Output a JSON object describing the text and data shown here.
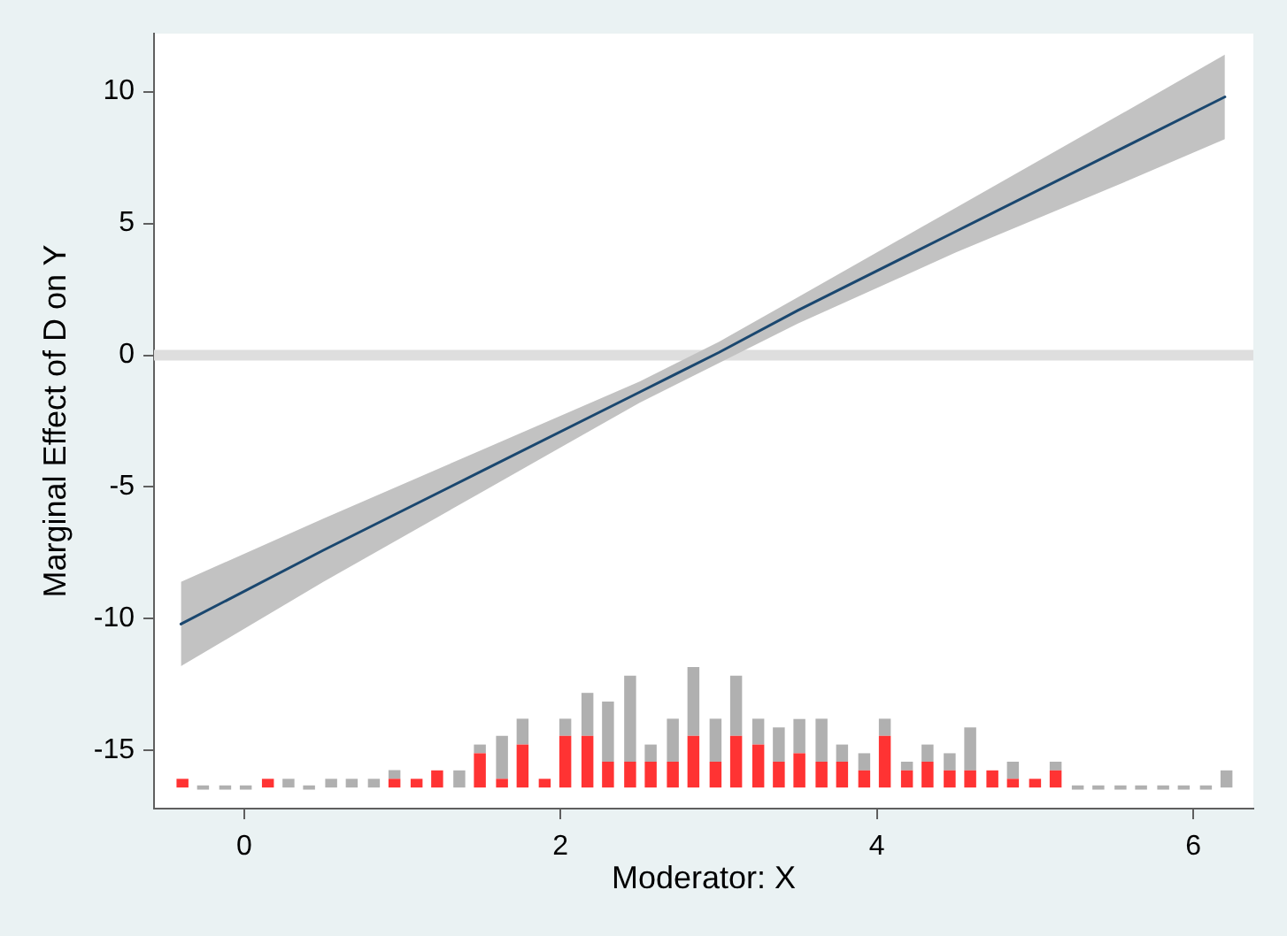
{
  "chart_data": {
    "type": "line",
    "xlabel": "Moderator: X",
    "ylabel": "Marginal Effect of D on Y",
    "xlim": [
      -0.57,
      6.38
    ],
    "ylim": [
      -17.2,
      12.2
    ],
    "xticks": [
      0,
      2,
      4,
      6
    ],
    "yticks": [
      -15,
      -10,
      -5,
      0,
      5,
      10
    ],
    "grid": false,
    "legend": false,
    "marker": "none",
    "ref_lines": [
      {
        "axis": "y",
        "value": 0,
        "color": "#dedede"
      }
    ],
    "series": [
      {
        "color": "#1a476f",
        "x": [
          -0.4,
          0.5,
          1.5,
          2.5,
          3,
          3.5,
          4.5,
          5.5,
          6.2
        ],
        "values": [
          -10.2,
          -7.4,
          -4.4,
          -1.4,
          0.1,
          1.7,
          4.7,
          7.7,
          9.8
        ],
        "lower": [
          -11.8,
          -8.6,
          -5.2,
          -1.8,
          -0.3,
          1.2,
          3.9,
          6.4,
          8.2
        ],
        "upper": [
          -8.6,
          -6.2,
          -3.6,
          -1.0,
          0.5,
          2.2,
          5.6,
          9.0,
          11.4
        ]
      },
      {
        "type": "bar",
        "color": "#ff3333",
        "x": [
          -0.39,
          -0.26,
          -0.12,
          0.01,
          0.15,
          0.28,
          0.41,
          0.55,
          0.68,
          0.82,
          0.95,
          1.09,
          1.22,
          1.36,
          1.49,
          1.63,
          1.76,
          1.9,
          2.03,
          2.17,
          2.3,
          2.44,
          2.57,
          2.71,
          2.84,
          2.98,
          3.11,
          3.25,
          3.38,
          3.51,
          3.65,
          3.78,
          3.92,
          4.05,
          4.19,
          4.32,
          4.46,
          4.59,
          4.73,
          4.86,
          5,
          5.13
        ],
        "base": [
          -16.4,
          null,
          null,
          null,
          -16.4,
          null,
          null,
          null,
          null,
          null,
          -16.4,
          -16.4,
          -16.4,
          null,
          -16.4,
          -16.4,
          -16.4,
          -16.4,
          -16.4,
          -16.4,
          -16.4,
          -16.4,
          -16.4,
          -16.4,
          -16.4,
          -16.4,
          -16.4,
          -16.4,
          -16.4,
          -16.4,
          -16.4,
          -16.4,
          -16.4,
          -16.4,
          -16.4,
          -16.4,
          -16.4,
          -16.4,
          -16.4,
          -16.4,
          -16.4,
          -16.4
        ],
        "values": [
          0.33,
          null,
          null,
          null,
          0.33,
          null,
          null,
          null,
          null,
          null,
          0.33,
          0.33,
          0.65,
          null,
          1.3,
          0.33,
          1.63,
          0.33,
          1.96,
          1.96,
          0.98,
          0.98,
          0.98,
          0.98,
          1.96,
          0.98,
          1.96,
          1.63,
          0.98,
          1.3,
          0.98,
          0.98,
          0.65,
          1.96,
          0.65,
          0.98,
          0.65,
          0.65,
          0.65,
          0.33,
          0.33,
          0.65
        ]
      },
      {
        "type": "bar",
        "color": "#b0b0b0",
        "x": [
          -0.26,
          -0.12,
          0.01,
          0.15,
          0.28,
          0.41,
          0.55,
          0.68,
          0.82,
          0.95,
          1.09,
          1.22,
          1.36,
          1.49,
          1.63,
          1.76,
          1.9,
          2.03,
          2.17,
          2.3,
          2.44,
          2.57,
          2.71,
          2.84,
          2.98,
          3.11,
          3.25,
          3.38,
          3.51,
          3.65,
          3.78,
          3.92,
          4.05,
          4.19,
          4.32,
          4.46,
          4.59,
          4.73,
          4.86,
          5,
          5.13,
          5.27,
          5.4,
          5.54,
          5.67,
          5.81,
          5.94,
          6.08,
          6.21
        ],
        "base": [
          -16.48,
          -16.48,
          -16.48,
          null,
          -16.4,
          -16.48,
          -16.4,
          -16.4,
          -16.4,
          -16.07,
          null,
          null,
          -16.4,
          -15.1,
          -16.07,
          -14.77,
          null,
          -14.44,
          -14.44,
          -15.42,
          -15.42,
          -15.42,
          -15.42,
          -14.44,
          -15.42,
          -14.44,
          -14.77,
          -15.42,
          -15.1,
          -15.42,
          -15.42,
          -15.75,
          -14.44,
          -15.75,
          -15.42,
          -15.75,
          -15.75,
          null,
          -16.07,
          null,
          -15.75,
          -16.48,
          -16.48,
          -16.48,
          -16.48,
          -16.48,
          -16.48,
          -16.48,
          -16.4
        ],
        "values": [
          0.16,
          0.16,
          0.16,
          null,
          0.33,
          0.16,
          0.33,
          0.33,
          0.33,
          0.33,
          null,
          null,
          0.65,
          0.33,
          1.63,
          0.98,
          null,
          0.65,
          1.63,
          2.28,
          3.26,
          0.65,
          1.63,
          2.61,
          1.63,
          2.28,
          0.98,
          1.3,
          1.3,
          1.63,
          0.65,
          0.65,
          0.65,
          0.33,
          0.65,
          0.65,
          1.63,
          null,
          0.65,
          null,
          0.33,
          0.16,
          0.16,
          0.16,
          0.16,
          0.16,
          0.16,
          0.16,
          0.65
        ]
      }
    ]
  }
}
